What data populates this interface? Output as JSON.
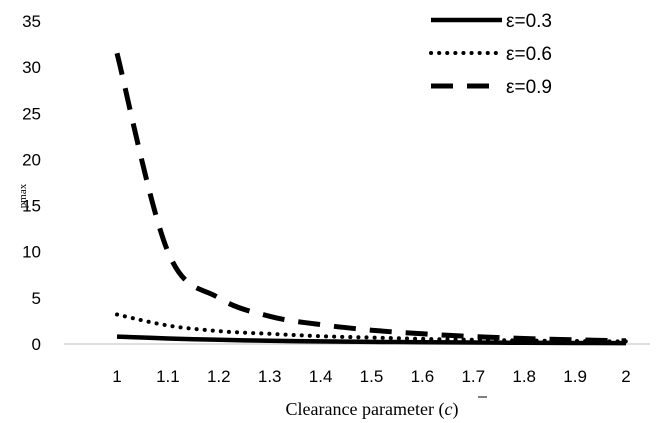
{
  "chart_data": {
    "type": "line",
    "title": "",
    "xlabel": "Clearance parameter (",
    "xlabel_symbol": "c",
    "xlabel_close": ")",
    "ylabel": "pmax",
    "categories": [
      "1",
      "1.1",
      "1.2",
      "1.3",
      "1.4",
      "1.5",
      "1.6",
      "1.7",
      "1.8",
      "1.9",
      "2"
    ],
    "yticks": [
      "0",
      "5",
      "10",
      "15",
      "20",
      "25",
      "30",
      "35"
    ],
    "ylim": [
      0,
      35
    ],
    "grid": false,
    "legend_position": "top-right",
    "series": [
      {
        "name": "ε=0.3",
        "style": "solid",
        "values": [
          0.8,
          0.6,
          0.45,
          0.35,
          0.28,
          0.23,
          0.19,
          0.16,
          0.13,
          0.11,
          0.1
        ]
      },
      {
        "name": "ε=0.6",
        "style": "dotted",
        "values": [
          3.2,
          2.0,
          1.4,
          1.1,
          0.85,
          0.7,
          0.55,
          0.45,
          0.38,
          0.32,
          0.28
        ]
      },
      {
        "name": "ε=0.9",
        "style": "dashed",
        "values": [
          31.5,
          10.0,
          5.0,
          3.0,
          2.1,
          1.5,
          1.1,
          0.8,
          0.6,
          0.45,
          0.35
        ]
      }
    ]
  }
}
